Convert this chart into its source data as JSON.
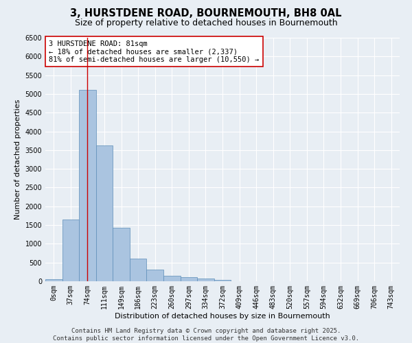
{
  "title_line1": "3, HURSTDENE ROAD, BOURNEMOUTH, BH8 0AL",
  "title_line2": "Size of property relative to detached houses in Bournemouth",
  "xlabel": "Distribution of detached houses by size in Bournemouth",
  "ylabel": "Number of detached properties",
  "categories": [
    "0sqm",
    "37sqm",
    "74sqm",
    "111sqm",
    "149sqm",
    "186sqm",
    "223sqm",
    "260sqm",
    "297sqm",
    "334sqm",
    "372sqm",
    "409sqm",
    "446sqm",
    "483sqm",
    "520sqm",
    "557sqm",
    "594sqm",
    "632sqm",
    "669sqm",
    "706sqm",
    "743sqm"
  ],
  "bar_values": [
    60,
    1650,
    5100,
    3620,
    1420,
    610,
    310,
    150,
    110,
    70,
    40,
    0,
    0,
    0,
    0,
    0,
    0,
    0,
    0,
    0,
    0
  ],
  "bar_color": "#aac4e0",
  "bar_edge_color": "#5b8db8",
  "vline_x": 2,
  "vline_color": "#cc0000",
  "annotation_text": "3 HURSTDENE ROAD: 81sqm\n← 18% of detached houses are smaller (2,337)\n81% of semi-detached houses are larger (10,550) →",
  "annotation_box_color": "#ffffff",
  "annotation_box_edge": "#cc0000",
  "ylim": [
    0,
    6500
  ],
  "yticks": [
    0,
    500,
    1000,
    1500,
    2000,
    2500,
    3000,
    3500,
    4000,
    4500,
    5000,
    5500,
    6000,
    6500
  ],
  "background_color": "#e8eef4",
  "grid_color": "#ffffff",
  "footer_line1": "Contains HM Land Registry data © Crown copyright and database right 2025.",
  "footer_line2": "Contains public sector information licensed under the Open Government Licence v3.0.",
  "title_fontsize": 10.5,
  "subtitle_fontsize": 9,
  "axis_label_fontsize": 8,
  "tick_fontsize": 7,
  "annotation_fontsize": 7.5,
  "footer_fontsize": 6.5
}
